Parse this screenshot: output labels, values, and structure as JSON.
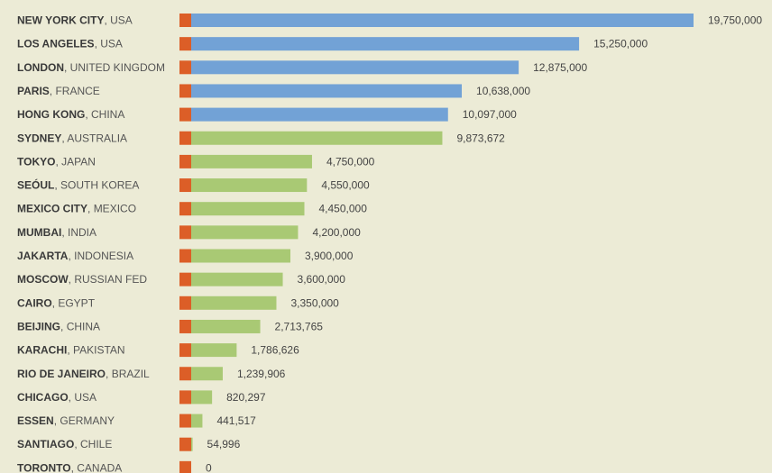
{
  "chart_data": {
    "type": "bar",
    "orientation": "horizontal",
    "categories": [
      {
        "city": "NEW YORK CITY",
        "country": "USA"
      },
      {
        "city": "LOS ANGELES",
        "country": "USA"
      },
      {
        "city": "LONDON",
        "country": "UNITED KINGDOM"
      },
      {
        "city": "PARIS",
        "country": "FRANCE"
      },
      {
        "city": "HONG KONG",
        "country": "CHINA"
      },
      {
        "city": "SYDNEY",
        "country": "AUSTRALIA"
      },
      {
        "city": "TOKYO",
        "country": "JAPAN"
      },
      {
        "city": "SEÓUL",
        "country": "SOUTH KOREA"
      },
      {
        "city": "MEXICO CITY",
        "country": "MEXICO"
      },
      {
        "city": "MUMBAI",
        "country": "INDIA"
      },
      {
        "city": "JAKARTA",
        "country": "INDONESIA"
      },
      {
        "city": "MOSCOW",
        "country": "RUSSIAN FED"
      },
      {
        "city": "CAIRO",
        "country": "EGYPT"
      },
      {
        "city": "BEIJING",
        "country": "CHINA"
      },
      {
        "city": "KARACHI",
        "country": "PAKISTAN"
      },
      {
        "city": "RIO DE JANEIRO",
        "country": "BRAZIL"
      },
      {
        "city": "CHICAGO",
        "country": "USA"
      },
      {
        "city": "ESSEN",
        "country": "GERMANY"
      },
      {
        "city": "SANTIAGO",
        "country": "CHILE"
      },
      {
        "city": "TORONTO",
        "country": "CANADA"
      }
    ],
    "values": [
      19750000,
      15250000,
      12875000,
      10638000,
      10097000,
      9873672,
      4750000,
      4550000,
      4450000,
      4200000,
      3900000,
      3600000,
      3350000,
      2713765,
      1786626,
      1239906,
      820297,
      441517,
      54996,
      0
    ],
    "value_labels": [
      "19,750,000",
      "15,250,000",
      "12,875,000",
      "10,638,000",
      "10,097,000",
      "9,873,672",
      "4,750,000",
      "4,550,000",
      "4,450,000",
      "4,200,000",
      "3,900,000",
      "3,600,000",
      "3,350,000",
      "2,713,765",
      "1,786,626",
      "1,239,906",
      "820,297",
      "441,517",
      "54,996",
      "0"
    ],
    "highlight_count": 5,
    "title": "",
    "xlabel": "",
    "ylabel": "",
    "grid": false,
    "legend": "none",
    "colors": {
      "background": "#ecebd6",
      "highlight_bar": "#72a2d6",
      "bar": "#a9c974",
      "stub": "#dc5e27",
      "label_city": "#3a3a3a",
      "label_country": "#555555",
      "value_text": "#444444"
    }
  }
}
